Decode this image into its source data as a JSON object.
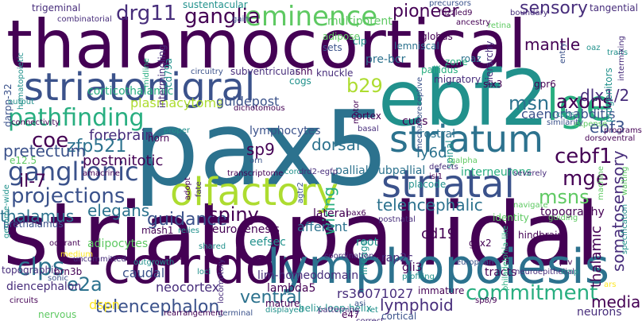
{
  "palette": {
    "dark_purple": "#440154",
    "purple": "#472d7b",
    "indigo": "#3b528b",
    "blue": "#2c728e",
    "teal": "#21918c",
    "green": "#28ae80",
    "light_green": "#5ec962",
    "yellow_green": "#addc30",
    "yellow": "#fde725"
  },
  "words": [
    {
      "text": "thalamocortical",
      "color": "#440154"
    },
    {
      "text": "pax5",
      "color": "#2c728e"
    },
    {
      "text": "striatopallidal",
      "color": "#440154"
    },
    {
      "text": "ebf2",
      "color": "#21918c"
    },
    {
      "text": "lymphopoiesis",
      "color": "#2c728e"
    },
    {
      "text": "corridor",
      "color": "#440154"
    },
    {
      "text": "olfactory",
      "color": "#addc30"
    },
    {
      "text": "striatonigral",
      "color": "#3b528b"
    },
    {
      "text": "striatum",
      "color": "#2c728e"
    },
    {
      "text": "striatal",
      "color": "#3b528b"
    },
    {
      "text": "eminence",
      "color": "#5ec962"
    },
    {
      "text": "lge",
      "color": "#28ae80"
    },
    {
      "text": "projections",
      "color": "#3b528b"
    },
    {
      "text": "ganglionic",
      "color": "#3b528b"
    },
    {
      "text": "telencephalon",
      "color": "#3b528b"
    },
    {
      "text": "commitment",
      "color": "#28ae80"
    },
    {
      "text": "drg11",
      "color": "#472d7b"
    },
    {
      "text": "ganglia",
      "color": "#440154"
    },
    {
      "text": "sensory",
      "color": "#472d7b"
    },
    {
      "text": "pioneer",
      "color": "#440154"
    },
    {
      "text": "axons",
      "color": "#440154"
    },
    {
      "text": "mantle",
      "color": "#440154"
    },
    {
      "text": "msn",
      "color": "#2c728e"
    },
    {
      "text": "b29",
      "color": "#addc30"
    },
    {
      "text": "pathfinding",
      "color": "#28ae80"
    },
    {
      "text": "coe",
      "color": "#440154"
    },
    {
      "text": "forebrain",
      "color": "#472d7b"
    },
    {
      "text": "zfp521",
      "color": "#2c728e"
    },
    {
      "text": "pretectum",
      "color": "#3b528b"
    },
    {
      "text": "postmitotic",
      "color": "#440154"
    },
    {
      "text": "il-7",
      "color": "#440154"
    },
    {
      "text": "thalamus",
      "color": "#2c728e"
    },
    {
      "text": "elegans",
      "color": "#2c728e"
    },
    {
      "text": "guidance",
      "color": "#3b528b"
    },
    {
      "text": "spiny",
      "color": "#440154"
    },
    {
      "text": "clps",
      "color": "#2c728e"
    },
    {
      "text": "e2a",
      "color": "#2c728e"
    },
    {
      "text": "ventral",
      "color": "#2c728e"
    },
    {
      "text": "lymphoid",
      "color": "#472d7b"
    },
    {
      "text": "cebf1",
      "color": "#440154"
    },
    {
      "text": "mge",
      "color": "#440154"
    },
    {
      "text": "msns",
      "color": "#5ec962"
    },
    {
      "text": "telencephalic",
      "color": "#2c728e"
    },
    {
      "text": "dorsal",
      "color": "#2c728e"
    },
    {
      "text": "wiring",
      "color": "#28ae80"
    },
    {
      "text": "sp9",
      "color": "#440154"
    },
    {
      "text": "ly6d",
      "color": "#2c728e"
    },
    {
      "text": "ebf3",
      "color": "#3b528b"
    },
    {
      "text": "dlx1/2",
      "color": "#472d7b"
    },
    {
      "text": "caenorhabditis",
      "color": "#3b528b"
    },
    {
      "text": "somatosensory",
      "color": "#472d7b"
    },
    {
      "text": "thalamic",
      "color": "#440154"
    },
    {
      "text": "medial",
      "color": "#440154"
    },
    {
      "text": "cd19",
      "color": "#440154"
    },
    {
      "text": "plasmacytoma",
      "color": "#addc30"
    },
    {
      "text": "corticothalamic",
      "color": "#28ae80"
    },
    {
      "text": "guidepost",
      "color": "#3b528b"
    },
    {
      "text": "interneurons",
      "color": "#28ae80"
    },
    {
      "text": "topography",
      "color": "#440154"
    },
    {
      "text": "rs36071027",
      "color": "#472d7b"
    },
    {
      "text": "neocortex",
      "color": "#472d7b"
    },
    {
      "text": "caudal",
      "color": "#3b528b"
    },
    {
      "text": "dspn",
      "color": "#fde725"
    },
    {
      "text": "adipocytes",
      "color": "#5ec962"
    },
    {
      "text": "trigeminal",
      "color": "#472d7b"
    },
    {
      "text": "sustentacular",
      "color": "#21918c"
    },
    {
      "text": "multipotent",
      "color": "#5ec962"
    },
    {
      "text": "tangential",
      "color": "#472d7b"
    },
    {
      "text": "hierarchy",
      "color": "#472d7b"
    },
    {
      "text": "progenitors",
      "color": "#21918c"
    },
    {
      "text": "pre-bcr",
      "color": "#2c728e"
    },
    {
      "text": "lemniscal",
      "color": "#2c728e"
    },
    {
      "text": "globus",
      "color": "#440154"
    },
    {
      "text": "clp",
      "color": "#21918c"
    },
    {
      "text": "adipose",
      "color": "#5ec962"
    },
    {
      "text": "sets",
      "color": "#3b528b"
    },
    {
      "text": "shh",
      "color": "#440154"
    },
    {
      "text": "cogs",
      "color": "#5ec962"
    },
    {
      "text": "knuckle",
      "color": "#472d7b"
    },
    {
      "text": "motor",
      "color": "#440154"
    },
    {
      "text": "migratory",
      "color": "#472d7b"
    },
    {
      "text": "cortex",
      "color": "#440154"
    },
    {
      "text": "cues",
      "color": "#440154"
    },
    {
      "text": "rostral",
      "color": "#2c728e"
    },
    {
      "text": "gpr6",
      "color": "#440154"
    },
    {
      "text": "six3",
      "color": "#440154"
    },
    {
      "text": "spinal",
      "color": "#21918c"
    },
    {
      "text": "roaz",
      "color": "#2c728e"
    },
    {
      "text": "zone",
      "color": "#28ae80"
    },
    {
      "text": "pallidus",
      "color": "#28ae80"
    },
    {
      "text": "intermingling",
      "color": "#472d7b"
    },
    {
      "text": "cd79a",
      "color": "#21918c"
    },
    {
      "text": "subventricular",
      "color": "#472d7b"
    },
    {
      "text": "circuitry",
      "color": "#3b528b"
    },
    {
      "text": "dichotomous",
      "color": "#440154"
    },
    {
      "text": "darpp-32",
      "color": "#3b528b"
    },
    {
      "text": "hematopoietic",
      "color": "#21918c"
    },
    {
      "text": "combinatorial",
      "color": "#472d7b"
    },
    {
      "text": "connectivity",
      "color": "#440154"
    },
    {
      "text": "output",
      "color": "#21918c"
    },
    {
      "text": "e12.5",
      "color": "#5ec962"
    },
    {
      "text": "amacrine",
      "color": "#440154"
    },
    {
      "text": "horn",
      "color": "#440154"
    },
    {
      "text": "lymphocytes",
      "color": "#3b528b"
    },
    {
      "text": "neurogenesis",
      "color": "#440154"
    },
    {
      "text": "mash1",
      "color": "#440154"
    },
    {
      "text": "lateral",
      "color": "#440154"
    },
    {
      "text": "afferent",
      "color": "#2c728e"
    },
    {
      "text": "eefsec",
      "color": "#21918c"
    },
    {
      "text": "pallial-subpallial",
      "color": "#2c728e"
    },
    {
      "text": "identity",
      "color": "#5ec962"
    },
    {
      "text": "hindbrain",
      "color": "#440154"
    },
    {
      "text": "gsx2",
      "color": "#440154"
    },
    {
      "text": "rap2c",
      "color": "#472d7b"
    },
    {
      "text": "gli3",
      "color": "#440154"
    },
    {
      "text": "lim-homeodomain",
      "color": "#472d7b"
    },
    {
      "text": "lambda5",
      "color": "#440154"
    },
    {
      "text": "helix-loop-helix",
      "color": "#21918c"
    },
    {
      "text": "diencephalon",
      "color": "#472d7b"
    },
    {
      "text": "prethalamus",
      "color": "#3b528b"
    },
    {
      "text": "topographic",
      "color": "#472d7b"
    },
    {
      "text": "brn3b",
      "color": "#440154"
    },
    {
      "text": "nervous",
      "color": "#5ec962"
    },
    {
      "text": "root",
      "color": "#21918c"
    },
    {
      "text": "lineage",
      "color": "#21918c"
    },
    {
      "text": "tracts",
      "color": "#440154"
    },
    {
      "text": "neurons",
      "color": "#472d7b"
    },
    {
      "text": "e47",
      "color": "#440154"
    },
    {
      "text": "cortical",
      "color": "#3b528b"
    },
    {
      "text": "immature",
      "color": "#440154"
    },
    {
      "text": "european",
      "color": "#3b528b"
    },
    {
      "text": "philadelphia-like",
      "color": "#28ae80"
    },
    {
      "text": "mature",
      "color": "#440154"
    },
    {
      "text": "displayed",
      "color": "#21918c"
    },
    {
      "text": "germinal",
      "color": "#3b528b"
    },
    {
      "text": "rearrangement",
      "color": "#440154"
    },
    {
      "text": "circuits",
      "color": "#440154"
    },
    {
      "text": "specification",
      "color": "#21918c"
    },
    {
      "text": "expense",
      "color": "#5ec962"
    },
    {
      "text": "severely",
      "color": "#472d7b"
    },
    {
      "text": "navigate",
      "color": "#5ec962"
    },
    {
      "text": "postnatal",
      "color": "#472d7b"
    },
    {
      "text": "placode",
      "color": "#21918c"
    },
    {
      "text": "isl1",
      "color": "#440154"
    },
    {
      "text": "coordination",
      "color": "#472d7b"
    },
    {
      "text": "patterning",
      "color": "#472d7b"
    },
    {
      "text": "profiling",
      "color": "#21918c"
    },
    {
      "text": "neuroepithelial",
      "color": "#472d7b"
    },
    {
      "text": "prv",
      "color": "#440154"
    },
    {
      "text": "omp",
      "color": "#21918c"
    },
    {
      "text": "uncommitted",
      "color": "#472d7b"
    },
    {
      "text": "locomotory",
      "color": "#472d7b"
    },
    {
      "text": "sonic",
      "color": "#3b528b"
    },
    {
      "text": "precursors",
      "color": "#3b528b"
    },
    {
      "text": "frizzled9",
      "color": "#440154"
    },
    {
      "text": "boundary",
      "color": "#472d7b"
    },
    {
      "text": "retina",
      "color": "#5ec962"
    },
    {
      "text": "ancestry",
      "color": "#440154"
    },
    {
      "text": "gain",
      "color": "#3b528b"
    },
    {
      "text": "midline",
      "color": "#28ae80"
    },
    {
      "text": "entry",
      "color": "#3b528b"
    },
    {
      "text": "oaz",
      "color": "#21918c"
    },
    {
      "text": "traits",
      "color": "#21918c"
    },
    {
      "text": "intermixing",
      "color": "#472d7b"
    },
    {
      "text": "basal",
      "color": "#472d7b"
    },
    {
      "text": "agtr2",
      "color": "#3b528b"
    },
    {
      "text": "cogs",
      "color": "#21918c"
    },
    {
      "text": "similarity",
      "color": "#3b528b"
    },
    {
      "text": "programs",
      "color": "#440154"
    },
    {
      "text": "dorsoventral",
      "color": "#440154"
    },
    {
      "text": "defects",
      "color": "#472d7b"
    },
    {
      "text": "igalpha",
      "color": "#5ec962"
    },
    {
      "text": "guiding",
      "color": "#5ec962"
    },
    {
      "text": "fate",
      "color": "#472d7b"
    },
    {
      "text": "adopt",
      "color": "#440154"
    },
    {
      "text": "orn",
      "color": "#3b528b"
    },
    {
      "text": "transcriptome",
      "color": "#440154"
    },
    {
      "text": "cord",
      "color": "#21918c"
    },
    {
      "text": "drd2-egfp",
      "color": "#472d7b"
    },
    {
      "text": "relies",
      "color": "#21918c"
    },
    {
      "text": "shared",
      "color": "#21918c"
    },
    {
      "text": "outgrowth",
      "color": "#21918c"
    },
    {
      "text": "genome-wide",
      "color": "#21918c"
    },
    {
      "text": "odorant",
      "color": "#440154"
    },
    {
      "text": "medium",
      "color": "#fde725"
    },
    {
      "text": "proper",
      "color": "#21918c"
    },
    {
      "text": "loci",
      "color": "#21918c"
    },
    {
      "text": "pax6",
      "color": "#440154"
    },
    {
      "text": "correct",
      "color": "#472d7b"
    },
    {
      "text": "asi",
      "color": "#3b528b"
    },
    {
      "text": "ret",
      "color": "#21918c"
    },
    {
      "text": "sp8/9",
      "color": "#440154"
    },
    {
      "text": "ars",
      "color": "#fde725"
    },
    {
      "text": "waiting",
      "color": "#5ec962"
    },
    {
      "text": "machine",
      "color": "#5ec962"
    },
    {
      "text": "mechanoreceptive",
      "color": "#3b528b"
    }
  ]
}
